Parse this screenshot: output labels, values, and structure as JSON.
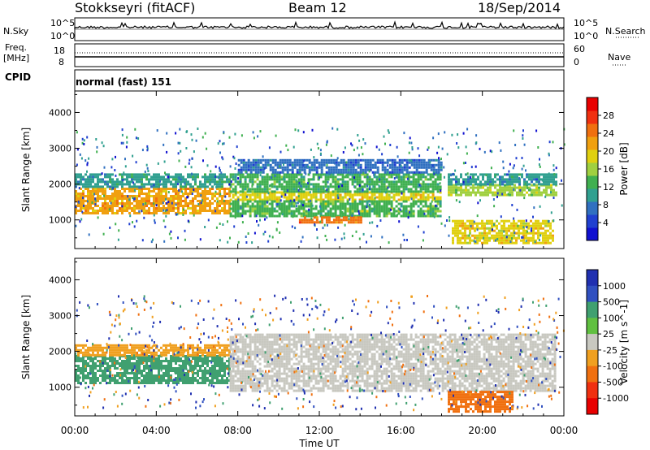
{
  "header": {
    "station": "Stokkseyri (fitACF)",
    "beam": "Beam 12",
    "date": "18/Sep/2014"
  },
  "top_panels": {
    "nsky_label": "N.Sky",
    "nsearch_label": "N.Search",
    "noise_tick_hi": "10^5",
    "noise_tick_lo": "10^0",
    "freq_label": "Freq.",
    "freq_unit": "[MHz]",
    "freq_ticks": [
      "18",
      "8"
    ],
    "nave_label": "Nave",
    "nave_ticks": [
      "60",
      "0"
    ],
    "cpid_label": "CPID",
    "cpid_value": "normal (fast) 151"
  },
  "chart_data": [
    {
      "type": "heatmap",
      "title": "Power",
      "ylabel": "Slant Range [km]",
      "xlabel": "Time UT",
      "x_ticks": [
        "00:00",
        "04:00",
        "08:00",
        "12:00",
        "16:00",
        "20:00",
        "00:00"
      ],
      "y_ticks": [
        1000,
        2000,
        3000,
        4000
      ],
      "ylim": [
        200,
        4600
      ],
      "xlim_hours": [
        0,
        24
      ],
      "colorbar": {
        "label": "Power [dB]",
        "ticks": [
          4,
          8,
          12,
          16,
          20,
          24,
          28
        ],
        "range": [
          0,
          32
        ],
        "colors": [
          "#1010d0",
          "#2040d0",
          "#3070c0",
          "#30a090",
          "#40b050",
          "#a0d040",
          "#e0d010",
          "#f0a010",
          "#f07010",
          "#f03010",
          "#e80000"
        ]
      },
      "bands": [
        {
          "t0": 0,
          "t1": 7.6,
          "r0": 1200,
          "r1": 1900,
          "level": 22
        },
        {
          "t0": 0,
          "t1": 7.6,
          "r0": 1900,
          "r1": 2300,
          "level": 10
        },
        {
          "t0": 7.6,
          "t1": 18,
          "r0": 1550,
          "r1": 1800,
          "level": 20
        },
        {
          "t0": 7.6,
          "t1": 18,
          "r0": 1800,
          "r1": 2300,
          "level": 12
        },
        {
          "t0": 7.6,
          "t1": 18,
          "r0": 1100,
          "r1": 1550,
          "level": 14
        },
        {
          "t0": 8,
          "t1": 18,
          "r0": 2300,
          "r1": 2700,
          "level": 6
        },
        {
          "t0": 11,
          "t1": 14,
          "r0": 950,
          "r1": 1100,
          "level": 26
        },
        {
          "t0": 18.3,
          "t1": 23.6,
          "r0": 1700,
          "r1": 2000,
          "level": 16
        },
        {
          "t0": 18.3,
          "t1": 23.6,
          "r0": 2000,
          "r1": 2300,
          "level": 8
        },
        {
          "t0": 18.5,
          "t1": 23.5,
          "r0": 350,
          "r1": 1000,
          "level": 20
        }
      ]
    },
    {
      "type": "heatmap",
      "title": "Velocity",
      "ylabel": "Slant Range [km]",
      "xlabel": "Time UT",
      "x_ticks": [
        "00:00",
        "04:00",
        "08:00",
        "12:00",
        "16:00",
        "20:00",
        "00:00"
      ],
      "y_ticks": [
        1000,
        2000,
        3000,
        4000
      ],
      "ylim": [
        200,
        4600
      ],
      "xlim_hours": [
        0,
        24
      ],
      "colorbar": {
        "label": "Velocity [m s^-1]",
        "ticks": [
          "1000",
          "500",
          "100",
          "25",
          "-25",
          "-100",
          "-500",
          "-1000"
        ],
        "colors": [
          "#2030b0",
          "#3050c0",
          "#40a070",
          "#60c040",
          "#c8c8c0",
          "#f0a020",
          "#f07010",
          "#f03010",
          "#e80000"
        ]
      },
      "bands": [
        {
          "t0": 0,
          "t1": 7.6,
          "r0": 1100,
          "r1": 1900,
          "level": "100"
        },
        {
          "t0": 0,
          "t1": 7.6,
          "r0": 1900,
          "r1": 2200,
          "level": "-100"
        },
        {
          "t0": 7.6,
          "t1": 23.6,
          "r0": 900,
          "r1": 2500,
          "level": "0"
        },
        {
          "t0": 18.3,
          "t1": 21.5,
          "r0": 350,
          "r1": 900,
          "level": "-500"
        }
      ]
    }
  ]
}
